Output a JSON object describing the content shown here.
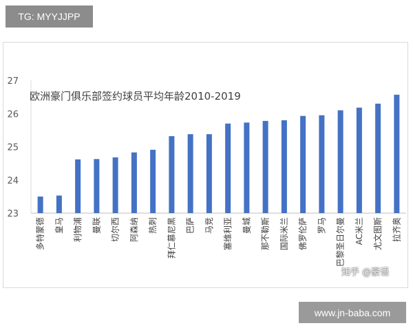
{
  "badge": {
    "text": "TG: MYYJJPP"
  },
  "footer": {
    "text": "www.jn-baba.com"
  },
  "watermark": {
    "text": "知乎 @豪语"
  },
  "chart_data": {
    "type": "bar",
    "title": "欧洲豪门俱乐部签约球员平均年龄2010-2019",
    "categories": [
      "多特蒙德",
      "皇马",
      "利物浦",
      "曼联",
      "切尔西",
      "阿森纳",
      "热刺",
      "拜仁慕尼黑",
      "巴萨",
      "马竞",
      "塞维利亚",
      "曼城",
      "那不勒斯",
      "国际米兰",
      "佛罗伦萨",
      "罗马",
      "巴黎圣日尔曼",
      "AC米兰",
      "尤文图斯",
      "拉齐奥"
    ],
    "values": [
      23.5,
      23.53,
      24.62,
      24.63,
      24.68,
      24.83,
      24.91,
      25.32,
      25.38,
      25.38,
      25.7,
      25.73,
      25.78,
      25.8,
      25.93,
      25.95,
      26.1,
      26.18,
      26.3,
      26.57
    ],
    "ylim": [
      23,
      27
    ],
    "yticks": [
      23,
      24,
      25,
      26,
      27
    ],
    "grid": false,
    "bar_color": "#4472c4"
  }
}
